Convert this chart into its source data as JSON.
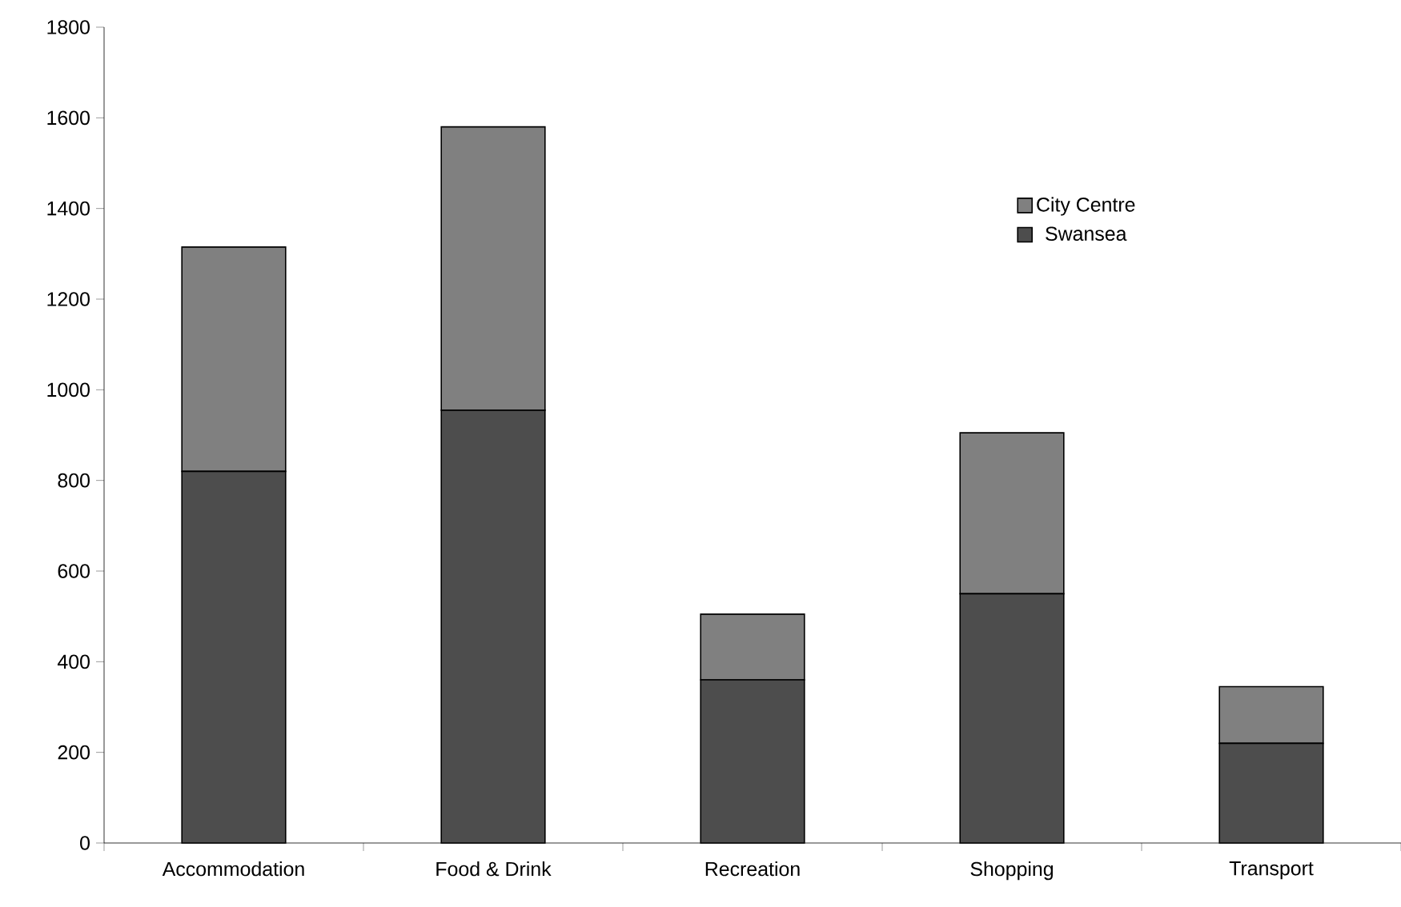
{
  "chart_data": {
    "type": "bar",
    "stacked": true,
    "categories": [
      "Accommodation",
      "Food & Drink",
      "Recreation",
      "Shopping",
      "Transport"
    ],
    "series": [
      {
        "name": "Swansea",
        "color": "#4d4d4d",
        "values": [
          820,
          955,
          360,
          550,
          220
        ]
      },
      {
        "name": "City Centre",
        "color": "#808080",
        "values": [
          495,
          625,
          145,
          355,
          125
        ]
      }
    ],
    "ylim": [
      0,
      1800
    ],
    "yticks": [
      0,
      200,
      400,
      600,
      800,
      1000,
      1200,
      1400,
      1600,
      1800
    ],
    "legend": "right"
  }
}
